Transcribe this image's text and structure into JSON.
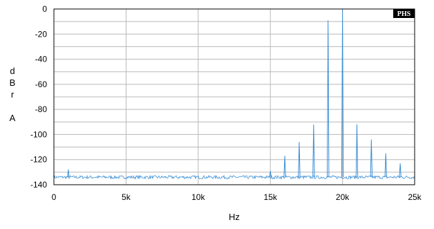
{
  "chart_data": {
    "type": "line",
    "title": "",
    "xlabel": "Hz",
    "ylabel": "dBrA",
    "ylabel_letters": [
      "d",
      "B",
      "r",
      "A"
    ],
    "xlim": [
      0,
      25000
    ],
    "ylim": [
      -140,
      0
    ],
    "x_ticks": [
      0,
      5000,
      10000,
      15000,
      20000,
      25000
    ],
    "x_tick_labels": [
      "0",
      "5k",
      "10k",
      "15k",
      "20k",
      "25k"
    ],
    "y_ticks": [
      0,
      -20,
      -40,
      -60,
      -80,
      -100,
      -120,
      -140
    ],
    "y_tick_labels": [
      "0",
      "-20",
      "-40",
      "-60",
      "-80",
      "-100",
      "-120",
      "-140"
    ],
    "y_minor_step": 10,
    "grid": true,
    "line_color": "#3a8fd6",
    "noise_floor_dbr": -134,
    "series": [
      {
        "name": "",
        "points": [
          {
            "x": 1000,
            "y": -128
          },
          {
            "x": 15000,
            "y": -129
          },
          {
            "x": 16000,
            "y": -117
          },
          {
            "x": 17000,
            "y": -106
          },
          {
            "x": 18000,
            "y": -92
          },
          {
            "x": 19000,
            "y": -9
          },
          {
            "x": 20000,
            "y": 0
          },
          {
            "x": 21000,
            "y": -92
          },
          {
            "x": 22000,
            "y": -104
          },
          {
            "x": 23000,
            "y": -115
          },
          {
            "x": 24000,
            "y": -123
          }
        ]
      }
    ]
  },
  "badge": {
    "text": "PHS",
    "background": "#000000",
    "color": "#ffffff"
  }
}
